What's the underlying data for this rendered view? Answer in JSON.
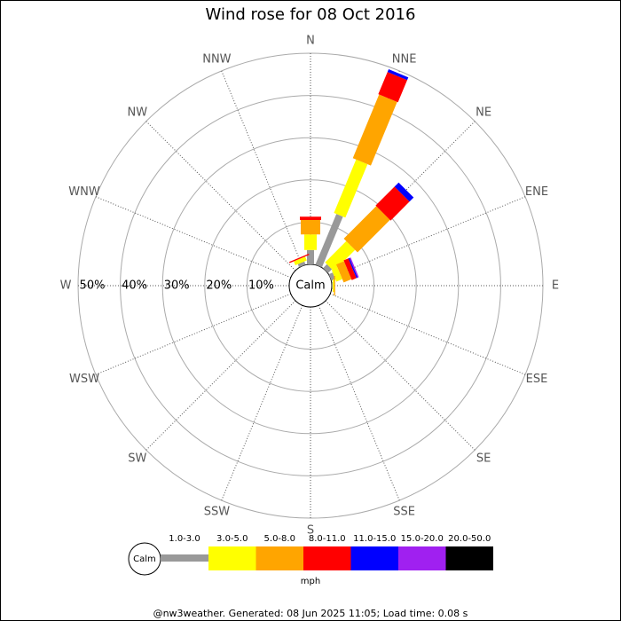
{
  "chart_data": {
    "type": "windrose",
    "title": "Wind rose for 08 Oct 2016",
    "directions": [
      "N",
      "NNE",
      "NE",
      "ENE",
      "E",
      "ESE",
      "SE",
      "SSE",
      "S",
      "SSW",
      "SW",
      "WSW",
      "W",
      "WNW",
      "NW",
      "NNW"
    ],
    "series": [
      {
        "name": "1.0-3.0",
        "color": "#999999",
        "values": [
          3.4,
          13,
          1.3,
          1,
          0.2,
          0,
          0,
          0,
          0,
          0,
          0,
          0,
          0,
          0,
          0,
          0.8
        ]
      },
      {
        "name": "3.0-5.0",
        "color": "#ffff00",
        "values": [
          3.7,
          13.7,
          7.1,
          1.5,
          0.3,
          0,
          0,
          0,
          0,
          0,
          0,
          0,
          0,
          0,
          0,
          1
        ]
      },
      {
        "name": "5.0-8.0",
        "color": "#ffa500",
        "values": [
          3.4,
          16.3,
          10.9,
          2,
          0.3,
          0,
          0,
          0,
          0,
          0,
          0,
          0,
          0,
          0,
          0,
          0
        ]
      },
      {
        "name": "8.0-11.0",
        "color": "#ff0000",
        "values": [
          0.8,
          5.7,
          6.3,
          1.2,
          0,
          0,
          0,
          0,
          0,
          0,
          0,
          0,
          0,
          0,
          0,
          0.3
        ]
      },
      {
        "name": "11.0-15.0",
        "color": "#0000ff",
        "values": [
          0,
          0.7,
          1.4,
          0.3,
          0,
          0,
          0,
          0,
          0,
          0,
          0,
          0,
          0,
          0,
          0,
          0
        ]
      },
      {
        "name": "15.0-20.0",
        "color": "#a020f0",
        "values": [
          0,
          0,
          0,
          0.3,
          0,
          0,
          0,
          0,
          0,
          0,
          0,
          0,
          0,
          0,
          0,
          0
        ]
      },
      {
        "name": "20.0-50.0",
        "color": "#000000",
        "values": [
          0,
          0,
          0,
          0,
          0,
          0,
          0,
          0,
          0,
          0,
          0,
          0,
          0,
          0,
          0,
          0
        ]
      }
    ],
    "rlim": [
      0,
      50
    ],
    "rticks": [
      {
        "value": 10,
        "label": "10%"
      },
      {
        "value": 20,
        "label": "20%"
      },
      {
        "value": 30,
        "label": "30%"
      },
      {
        "value": 40,
        "label": "40%"
      },
      {
        "value": 50,
        "label": "50%"
      }
    ],
    "calm_label": "Calm",
    "unit": "mph"
  },
  "footer": "@nw3weather. Generated: 08 Jun 2025 11:05; Load time: 0.08 s"
}
